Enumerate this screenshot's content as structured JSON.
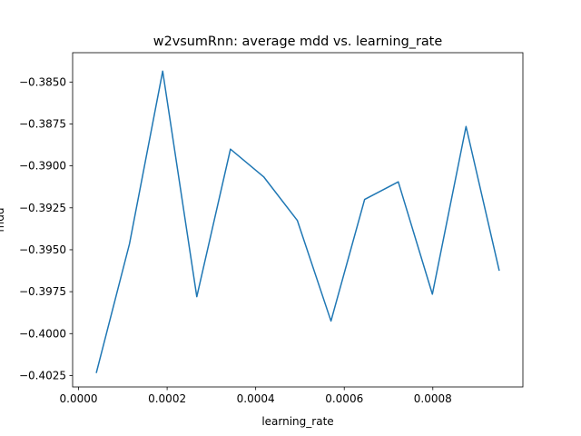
{
  "chart_data": {
    "type": "line",
    "title": "w2vsumRnn: average mdd vs. learning_rate",
    "xlabel": "learning_rate",
    "ylabel": "mdd",
    "xlim": [
      -1.34e-05,
      0.0010034
    ],
    "ylim": [
      -0.40318,
      -0.38325
    ],
    "x_ticks": [
      0.0,
      0.0002,
      0.0004,
      0.0006,
      0.0008
    ],
    "x_tick_labels": [
      "0.0000",
      "0.0002",
      "0.0004",
      "0.0006",
      "0.0008"
    ],
    "y_ticks": [
      -0.4025,
      -0.4,
      -0.3975,
      -0.395,
      -0.3925,
      -0.39,
      -0.3875,
      -0.385
    ],
    "y_tick_labels": [
      "−0.4025",
      "−0.4000",
      "−0.3975",
      "−0.3950",
      "−0.3925",
      "−0.3900",
      "−0.3875",
      "−0.3850"
    ],
    "grid": false,
    "series": [
      {
        "color": "#1f77b4",
        "x": [
          4e-05,
          0.000115,
          0.00019,
          0.000267,
          0.000343,
          0.000418,
          0.000494,
          0.00057,
          0.000646,
          0.000722,
          0.000799,
          0.000875,
          0.00095
        ],
        "y": [
          -0.40235,
          -0.39465,
          -0.38435,
          -0.3978,
          -0.389,
          -0.39065,
          -0.39325,
          -0.39925,
          -0.392,
          -0.39095,
          -0.39765,
          -0.38765,
          -0.39625
        ]
      }
    ]
  }
}
